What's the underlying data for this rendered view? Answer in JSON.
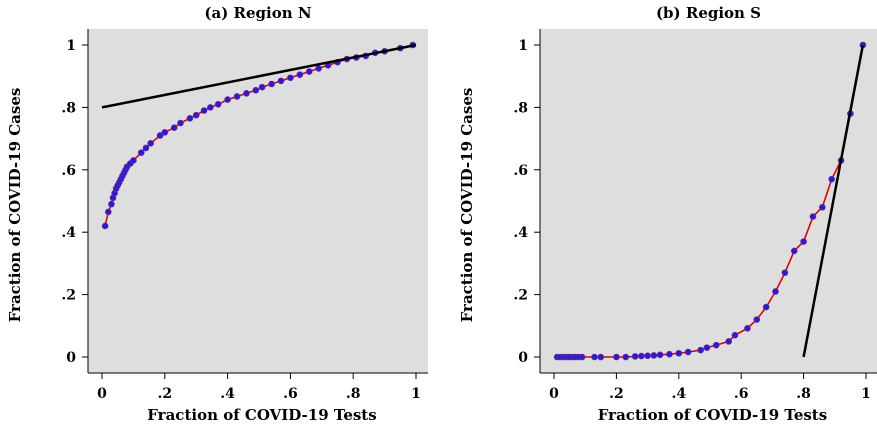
{
  "chart_data": [
    {
      "type": "line",
      "title": "(a) Region N",
      "xlabel": "Fraction of COVID-19 Tests",
      "ylabel": "Fraction of COVID-19 Cases",
      "xlim": [
        0,
        1
      ],
      "ylim": [
        0,
        1
      ],
      "xticks": [
        0,
        0.2,
        0.4,
        0.6,
        0.8,
        1
      ],
      "yticks": [
        0,
        0.2,
        0.4,
        0.6,
        0.8,
        1
      ],
      "xtick_labels": [
        "0",
        ".2",
        ".4",
        ".6",
        ".8",
        "1"
      ],
      "ytick_labels": [
        "0",
        ".2",
        ".4",
        ".6",
        ".8",
        "1"
      ],
      "grid": false,
      "series": [
        {
          "style": "points-with-fitted-curve",
          "x": [
            0.01,
            0.02,
            0.03,
            0.035,
            0.04,
            0.045,
            0.05,
            0.055,
            0.06,
            0.065,
            0.07,
            0.075,
            0.08,
            0.09,
            0.1,
            0.125,
            0.14,
            0.155,
            0.185,
            0.2,
            0.23,
            0.25,
            0.28,
            0.3,
            0.325,
            0.345,
            0.37,
            0.4,
            0.43,
            0.46,
            0.49,
            0.51,
            0.54,
            0.57,
            0.6,
            0.63,
            0.66,
            0.69,
            0.72,
            0.75,
            0.78,
            0.81,
            0.84,
            0.87,
            0.9,
            0.95,
            0.99
          ],
          "y": [
            0.42,
            0.465,
            0.49,
            0.51,
            0.525,
            0.54,
            0.55,
            0.56,
            0.57,
            0.58,
            0.59,
            0.6,
            0.61,
            0.62,
            0.63,
            0.655,
            0.67,
            0.685,
            0.71,
            0.72,
            0.735,
            0.75,
            0.765,
            0.775,
            0.79,
            0.8,
            0.81,
            0.825,
            0.835,
            0.845,
            0.855,
            0.865,
            0.875,
            0.885,
            0.895,
            0.905,
            0.915,
            0.925,
            0.935,
            0.945,
            0.955,
            0.96,
            0.965,
            0.975,
            0.98,
            0.99,
            1.0
          ]
        },
        {
          "style": "reference-line",
          "x": [
            0.0,
            1.0
          ],
          "y": [
            0.8,
            1.0
          ]
        }
      ]
    },
    {
      "type": "line",
      "title": "(b) Region S",
      "xlabel": "Fraction of COVID-19 Tests",
      "ylabel": "Fraction of COVID-19 Cases",
      "xlim": [
        0,
        1
      ],
      "ylim": [
        0,
        1
      ],
      "xticks": [
        0,
        0.2,
        0.4,
        0.6,
        0.8,
        1
      ],
      "yticks": [
        0,
        0.2,
        0.4,
        0.6,
        0.8,
        1
      ],
      "xtick_labels": [
        "0",
        ".2",
        ".4",
        ".6",
        ".8",
        "1"
      ],
      "ytick_labels": [
        "0",
        ".2",
        ".4",
        ".6",
        ".8",
        "1"
      ],
      "grid": false,
      "series": [
        {
          "style": "points-with-fitted-curve",
          "x": [
            0.01,
            0.02,
            0.03,
            0.04,
            0.05,
            0.06,
            0.07,
            0.08,
            0.09,
            0.13,
            0.15,
            0.2,
            0.23,
            0.26,
            0.28,
            0.3,
            0.32,
            0.34,
            0.37,
            0.4,
            0.43,
            0.47,
            0.49,
            0.52,
            0.56,
            0.58,
            0.62,
            0.65,
            0.68,
            0.71,
            0.74,
            0.77,
            0.8,
            0.83,
            0.86,
            0.89,
            0.92,
            0.95,
            0.99
          ],
          "y": [
            0.0,
            0.0,
            0.0,
            0.0,
            0.0,
            0.0,
            0.0,
            0.0,
            0.0,
            0.0,
            0.0,
            0.0,
            0.0,
            0.002,
            0.003,
            0.004,
            0.005,
            0.007,
            0.009,
            0.012,
            0.016,
            0.022,
            0.03,
            0.038,
            0.05,
            0.07,
            0.092,
            0.12,
            0.16,
            0.21,
            0.27,
            0.34,
            0.37,
            0.45,
            0.48,
            0.57,
            0.63,
            0.78,
            1.0
          ]
        },
        {
          "style": "reference-line",
          "x": [
            0.8,
            0.99
          ],
          "y": [
            0.0,
            1.0
          ]
        }
      ]
    }
  ]
}
